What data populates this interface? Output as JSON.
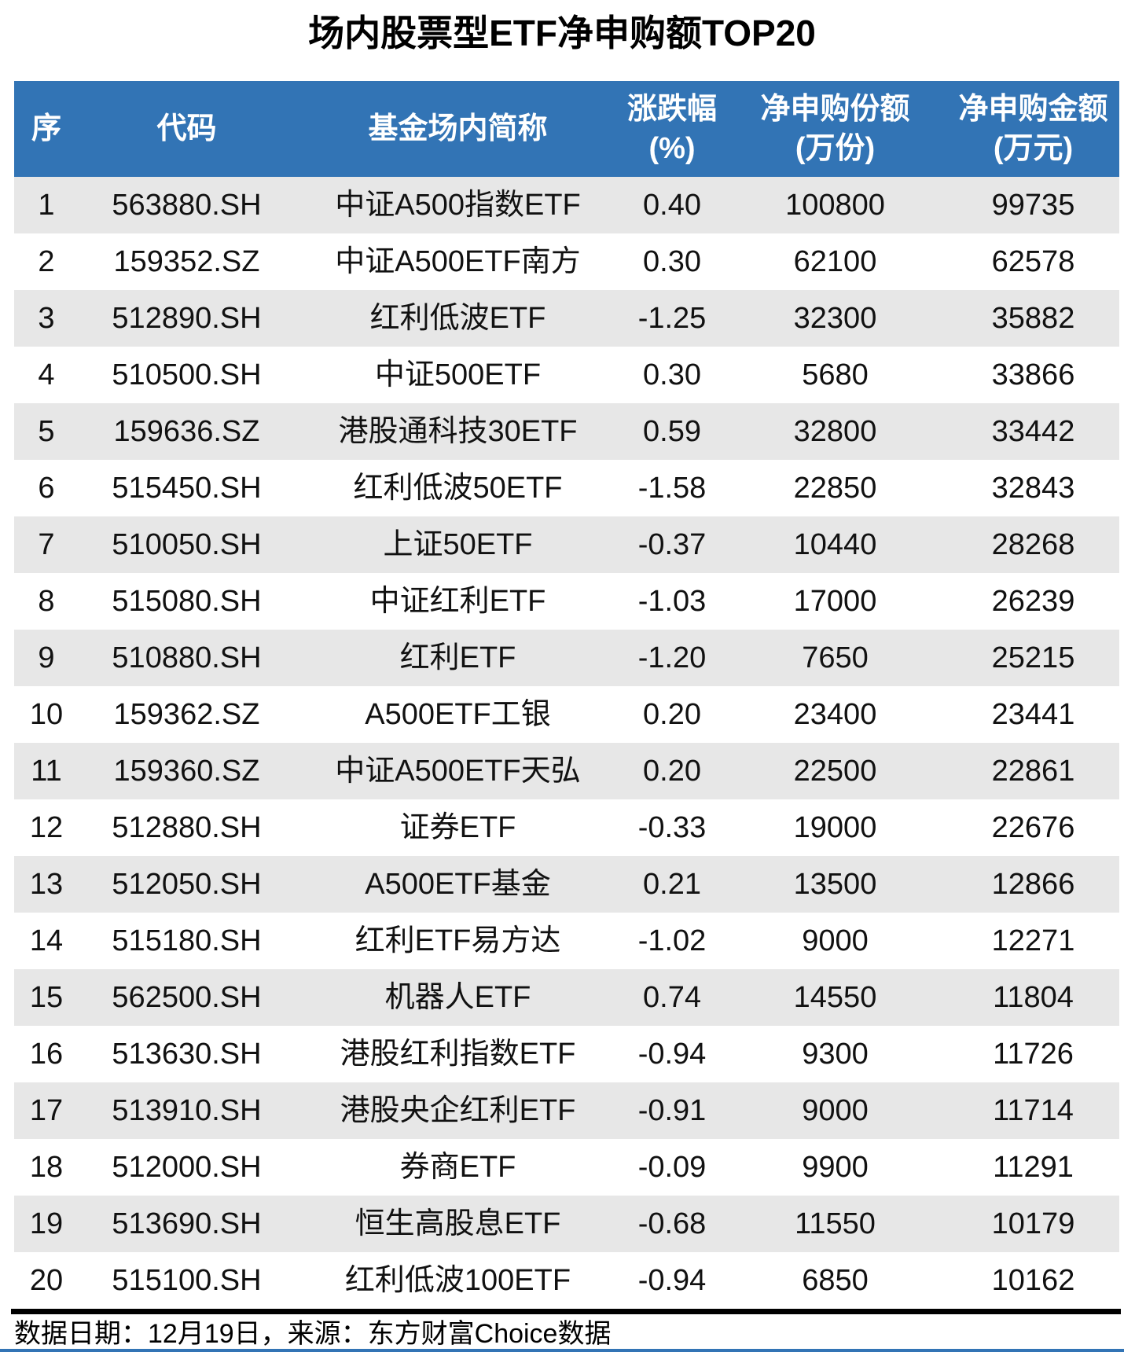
{
  "chart_data": {
    "type": "table",
    "title": "场内股票型ETF净申购额TOP20",
    "columns": [
      {
        "label": "序",
        "unit": ""
      },
      {
        "label": "代码",
        "unit": ""
      },
      {
        "label": "基金场内简称",
        "unit": ""
      },
      {
        "label": "涨跌幅",
        "unit": "(%)"
      },
      {
        "label": "净申购份额",
        "unit": "(万份)"
      },
      {
        "label": "净申购金额",
        "unit": "(万元)"
      }
    ],
    "rows": [
      [
        "1",
        "563880.SH",
        "中证A500指数ETF",
        "0.40",
        "100800",
        "99735"
      ],
      [
        "2",
        "159352.SZ",
        "中证A500ETF南方",
        "0.30",
        "62100",
        "62578"
      ],
      [
        "3",
        "512890.SH",
        "红利低波ETF",
        "-1.25",
        "32300",
        "35882"
      ],
      [
        "4",
        "510500.SH",
        "中证500ETF",
        "0.30",
        "5680",
        "33866"
      ],
      [
        "5",
        "159636.SZ",
        "港股通科技30ETF",
        "0.59",
        "32800",
        "33442"
      ],
      [
        "6",
        "515450.SH",
        "红利低波50ETF",
        "-1.58",
        "22850",
        "32843"
      ],
      [
        "7",
        "510050.SH",
        "上证50ETF",
        "-0.37",
        "10440",
        "28268"
      ],
      [
        "8",
        "515080.SH",
        "中证红利ETF",
        "-1.03",
        "17000",
        "26239"
      ],
      [
        "9",
        "510880.SH",
        "红利ETF",
        "-1.20",
        "7650",
        "25215"
      ],
      [
        "10",
        "159362.SZ",
        "A500ETF工银",
        "0.20",
        "23400",
        "23441"
      ],
      [
        "11",
        "159360.SZ",
        "中证A500ETF天弘",
        "0.20",
        "22500",
        "22861"
      ],
      [
        "12",
        "512880.SH",
        "证券ETF",
        "-0.33",
        "19000",
        "22676"
      ],
      [
        "13",
        "512050.SH",
        "A500ETF基金",
        "0.21",
        "13500",
        "12866"
      ],
      [
        "14",
        "515180.SH",
        "红利ETF易方达",
        "-1.02",
        "9000",
        "12271"
      ],
      [
        "15",
        "562500.SH",
        "机器人ETF",
        "0.74",
        "14550",
        "11804"
      ],
      [
        "16",
        "513630.SH",
        "港股红利指数ETF",
        "-0.94",
        "9300",
        "11726"
      ],
      [
        "17",
        "513910.SH",
        "港股央企红利ETF",
        "-0.91",
        "9000",
        "11714"
      ],
      [
        "18",
        "512000.SH",
        "券商ETF",
        "-0.09",
        "9900",
        "11291"
      ],
      [
        "19",
        "513690.SH",
        "恒生高股息ETF",
        "-0.68",
        "11550",
        "10179"
      ],
      [
        "20",
        "515100.SH",
        "红利低波100ETF",
        "-0.94",
        "6850",
        "10162"
      ]
    ],
    "footnote": "数据日期：12月19日，来源：东方财富Choice数据",
    "layout": {
      "striped": true,
      "first_row_shaded": true,
      "header_position": "top",
      "grid": false
    }
  },
  "colors": {
    "header_bg": "#3274B5",
    "stripe_bg": "#E7E7E7",
    "row_bg": "#FFFFFF",
    "divider": "#000000",
    "bottom_bar": "#3274B5"
  }
}
